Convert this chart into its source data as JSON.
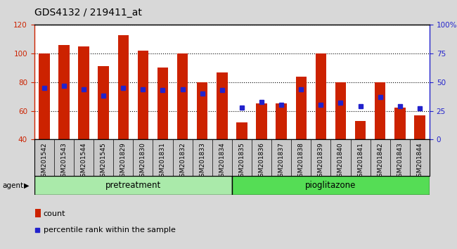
{
  "title": "GDS4132 / 219411_at",
  "samples": [
    "GSM201542",
    "GSM201543",
    "GSM201544",
    "GSM201545",
    "GSM201829",
    "GSM201830",
    "GSM201831",
    "GSM201832",
    "GSM201833",
    "GSM201834",
    "GSM201835",
    "GSM201836",
    "GSM201837",
    "GSM201838",
    "GSM201839",
    "GSM201840",
    "GSM201841",
    "GSM201842",
    "GSM201843",
    "GSM201844"
  ],
  "counts": [
    100,
    106,
    105,
    91,
    113,
    102,
    90,
    100,
    80,
    87,
    52,
    65,
    65,
    84,
    100,
    80,
    53,
    80,
    62,
    57
  ],
  "percentile_ranks": [
    45,
    47,
    44,
    38,
    45,
    44,
    43,
    44,
    40,
    43,
    28,
    33,
    30,
    44,
    30,
    32,
    29,
    37,
    29,
    27
  ],
  "groups": [
    "pretreatment",
    "pretreatment",
    "pretreatment",
    "pretreatment",
    "pretreatment",
    "pretreatment",
    "pretreatment",
    "pretreatment",
    "pretreatment",
    "pretreatment",
    "pioglitazone",
    "pioglitazone",
    "pioglitazone",
    "pioglitazone",
    "pioglitazone",
    "pioglitazone",
    "pioglitazone",
    "pioglitazone",
    "pioglitazone",
    "pioglitazone"
  ],
  "bar_color": "#cc2200",
  "marker_color": "#2222cc",
  "bar_width": 0.55,
  "ylim_left": [
    40,
    120
  ],
  "ylim_right": [
    0,
    100
  ],
  "yticks_left": [
    40,
    60,
    80,
    100,
    120
  ],
  "yticks_right": [
    0,
    25,
    50,
    75,
    100
  ],
  "ytick_labels_right": [
    "0",
    "25",
    "50",
    "75",
    "100%"
  ],
  "grid_color": "#000000",
  "bg_color": "#d8d8d8",
  "plot_bg_color": "#ffffff",
  "xtick_bg_color": "#c8c8c8",
  "group_colors": {
    "pretreatment": "#aaeaaa",
    "pioglitazone": "#55dd55"
  },
  "legend_count_label": "count",
  "legend_percentile_label": "percentile rank within the sample",
  "agent_label": "agent",
  "title_fontsize": 10,
  "tick_fontsize": 6.5,
  "group_fontsize": 8.5
}
